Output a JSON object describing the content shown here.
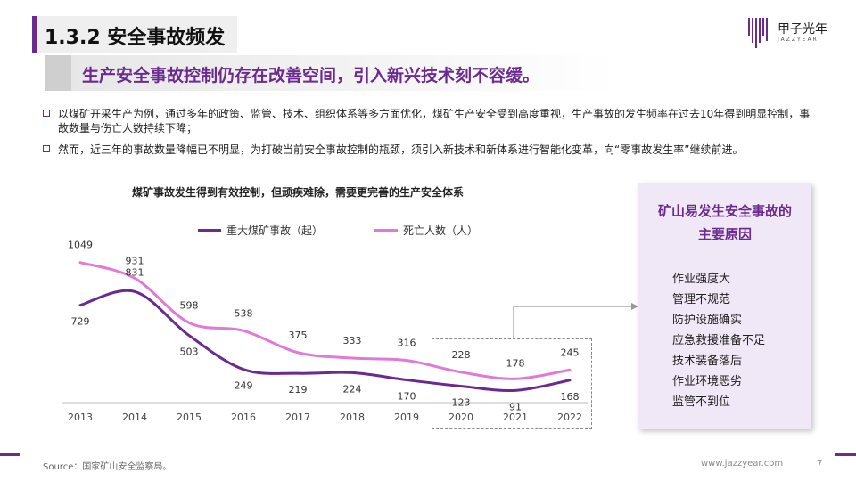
{
  "header": {
    "section_title": "1.3.2 安全事故频发",
    "subtitle": "生产安全事故控制仍存在改善空间，引入新兴技术刻不容缓。"
  },
  "logo": {
    "name": "甲子光年",
    "sub": "JAZZYEAR"
  },
  "bullets": [
    "以煤矿开采生产为例，通过多年的政策、监管、技术、组织体系等多方面优化，煤矿生产安全受到高度重视，生产事故的发生频率在过去10年得到明显控制，事故数量与伤亡人数持续下降；",
    "然而，近三年的事故数量降幅已不明显，为打破当前安全事故控制的瓶颈，须引入新技术和新体系进行智能化变革，向“零事故发生率”继续前进。"
  ],
  "colors": {
    "accent": "#6b2a8f",
    "series_dark": "#6b2a8f",
    "series_light": "#e07ad6"
  },
  "chart_data": {
    "type": "line",
    "title": "煤矿事故发生得到有效控制，但顽疾难除，需要更完善的生产安全体系",
    "x": [
      "2013",
      "2014",
      "2015",
      "2016",
      "2017",
      "2018",
      "2019",
      "2020",
      "2021",
      "2022"
    ],
    "series": [
      {
        "name": "重大煤矿事故（起）",
        "values": [
          729,
          831,
          503,
          249,
          219,
          224,
          170,
          123,
          91,
          168
        ],
        "color": "#6b2a8f"
      },
      {
        "name": "死亡人数（人）",
        "values": [
          1049,
          931,
          598,
          538,
          375,
          333,
          316,
          228,
          178,
          245
        ],
        "color": "#e07ad6"
      }
    ],
    "legend_position": "top",
    "grid": false
  },
  "side_box": {
    "title_line1": "矿山易发生安全事故的",
    "title_line2": "主要原因",
    "items": [
      "作业强度大",
      "管理不规范",
      "防护设施确实",
      "应急救援准备不足",
      "技术装备落后",
      "作业环境恶劣",
      "监管不到位"
    ]
  },
  "footer": {
    "source": "Source：国家矿山安全监察局。",
    "site": "www.jazzyear.com",
    "page": "7"
  }
}
